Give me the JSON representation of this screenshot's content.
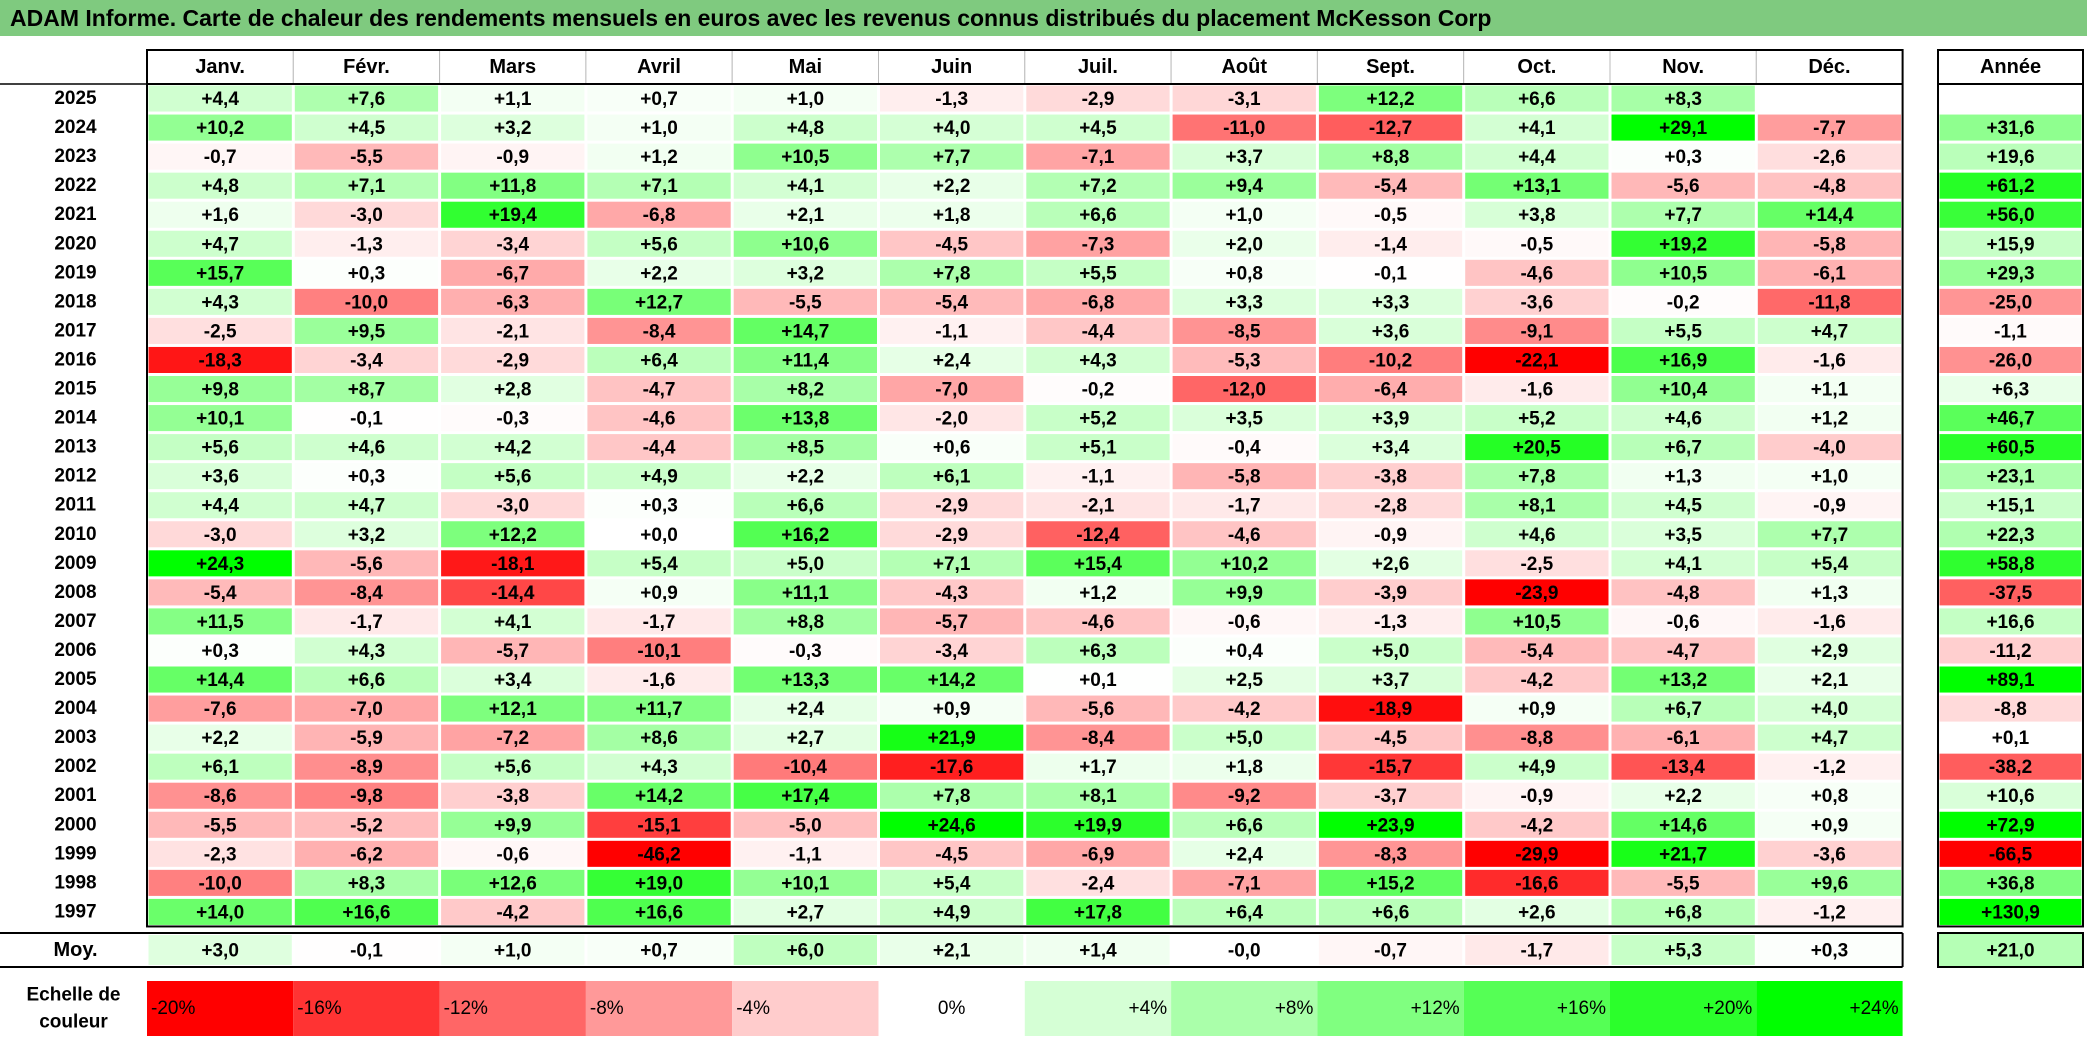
{
  "title": "ADAM Informe. Carte de chaleur des rendements mensuels en euros avec les revenus connus distribués du placement McKesson Corp",
  "chart_data": {
    "type": "heatmap",
    "months": [
      "Janv.",
      "Févr.",
      "Mars",
      "Avril",
      "Mai",
      "Juin",
      "Juil.",
      "Août",
      "Sept.",
      "Oct.",
      "Nov.",
      "Déc."
    ],
    "year_header": "Année",
    "rows": [
      {
        "year": "2025",
        "values": [
          "+4,4",
          "+7,6",
          "+1,1",
          "+0,7",
          "+1,0",
          "-1,3",
          "-2,9",
          "-3,1",
          "+12,2",
          "+6,6",
          "+8,3",
          ""
        ],
        "annual": ""
      },
      {
        "year": "2024",
        "values": [
          "+10,2",
          "+4,5",
          "+3,2",
          "+1,0",
          "+4,8",
          "+4,0",
          "+4,5",
          "-11,0",
          "-12,7",
          "+4,1",
          "+29,1",
          "-7,7"
        ],
        "annual": "+31,6"
      },
      {
        "year": "2023",
        "values": [
          "-0,7",
          "-5,5",
          "-0,9",
          "+1,2",
          "+10,5",
          "+7,7",
          "-7,1",
          "+3,7",
          "+8,8",
          "+4,4",
          "+0,3",
          "-2,6"
        ],
        "annual": "+19,6"
      },
      {
        "year": "2022",
        "values": [
          "+4,8",
          "+7,1",
          "+11,8",
          "+7,1",
          "+4,1",
          "+2,2",
          "+7,2",
          "+9,4",
          "-5,4",
          "+13,1",
          "-5,6",
          "-4,8"
        ],
        "annual": "+61,2"
      },
      {
        "year": "2021",
        "values": [
          "+1,6",
          "-3,0",
          "+19,4",
          "-6,8",
          "+2,1",
          "+1,8",
          "+6,6",
          "+1,0",
          "-0,5",
          "+3,8",
          "+7,7",
          "+14,4"
        ],
        "annual": "+56,0"
      },
      {
        "year": "2020",
        "values": [
          "+4,7",
          "-1,3",
          "-3,4",
          "+5,6",
          "+10,6",
          "-4,5",
          "-7,3",
          "+2,0",
          "-1,4",
          "-0,5",
          "+19,2",
          "-5,8"
        ],
        "annual": "+15,9"
      },
      {
        "year": "2019",
        "values": [
          "+15,7",
          "+0,3",
          "-6,7",
          "+2,2",
          "+3,2",
          "+7,8",
          "+5,5",
          "+0,8",
          "-0,1",
          "-4,6",
          "+10,5",
          "-6,1"
        ],
        "annual": "+29,3"
      },
      {
        "year": "2018",
        "values": [
          "+4,3",
          "-10,0",
          "-6,3",
          "+12,7",
          "-5,5",
          "-5,4",
          "-6,8",
          "+3,3",
          "+3,3",
          "-3,6",
          "-0,2",
          "-11,8"
        ],
        "annual": "-25,0"
      },
      {
        "year": "2017",
        "values": [
          "-2,5",
          "+9,5",
          "-2,1",
          "-8,4",
          "+14,7",
          "-1,1",
          "-4,4",
          "-8,5",
          "+3,6",
          "-9,1",
          "+5,5",
          "+4,7"
        ],
        "annual": "-1,1"
      },
      {
        "year": "2016",
        "values": [
          "-18,3",
          "-3,4",
          "-2,9",
          "+6,4",
          "+11,4",
          "+2,4",
          "+4,3",
          "-5,3",
          "-10,2",
          "-22,1",
          "+16,9",
          "-1,6"
        ],
        "annual": "-26,0"
      },
      {
        "year": "2015",
        "values": [
          "+9,8",
          "+8,7",
          "+2,8",
          "-4,7",
          "+8,2",
          "-7,0",
          "-0,2",
          "-12,0",
          "-6,4",
          "-1,6",
          "+10,4",
          "+1,1"
        ],
        "annual": "+6,3"
      },
      {
        "year": "2014",
        "values": [
          "+10,1",
          "-0,1",
          "-0,3",
          "-4,6",
          "+13,8",
          "-2,0",
          "+5,2",
          "+3,5",
          "+3,9",
          "+5,2",
          "+4,6",
          "+1,2"
        ],
        "annual": "+46,7"
      },
      {
        "year": "2013",
        "values": [
          "+5,6",
          "+4,6",
          "+4,2",
          "-4,4",
          "+8,5",
          "+0,6",
          "+5,1",
          "-0,4",
          "+3,4",
          "+20,5",
          "+6,7",
          "-4,0"
        ],
        "annual": "+60,5"
      },
      {
        "year": "2012",
        "values": [
          "+3,6",
          "+0,3",
          "+5,6",
          "+4,9",
          "+2,2",
          "+6,1",
          "-1,1",
          "-5,8",
          "-3,8",
          "+7,8",
          "+1,3",
          "+1,0"
        ],
        "annual": "+23,1"
      },
      {
        "year": "2011",
        "values": [
          "+4,4",
          "+4,7",
          "-3,0",
          "+0,3",
          "+6,6",
          "-2,9",
          "-2,1",
          "-1,7",
          "-2,8",
          "+8,1",
          "+4,5",
          "-0,9"
        ],
        "annual": "+15,1"
      },
      {
        "year": "2010",
        "values": [
          "-3,0",
          "+3,2",
          "+12,2",
          "+0,0",
          "+16,2",
          "-2,9",
          "-12,4",
          "-4,6",
          "-0,9",
          "+4,6",
          "+3,5",
          "+7,7"
        ],
        "annual": "+22,3"
      },
      {
        "year": "2009",
        "values": [
          "+24,3",
          "-5,6",
          "-18,1",
          "+5,4",
          "+5,0",
          "+7,1",
          "+15,4",
          "+10,2",
          "+2,6",
          "-2,5",
          "+4,1",
          "+5,4"
        ],
        "annual": "+58,8"
      },
      {
        "year": "2008",
        "values": [
          "-5,4",
          "-8,4",
          "-14,4",
          "+0,9",
          "+11,1",
          "-4,3",
          "+1,2",
          "+9,9",
          "-3,9",
          "-23,9",
          "-4,8",
          "+1,3"
        ],
        "annual": "-37,5"
      },
      {
        "year": "2007",
        "values": [
          "+11,5",
          "-1,7",
          "+4,1",
          "-1,7",
          "+8,8",
          "-5,7",
          "-4,6",
          "-0,6",
          "-1,3",
          "+10,5",
          "-0,6",
          "-1,6"
        ],
        "annual": "+16,6"
      },
      {
        "year": "2006",
        "values": [
          "+0,3",
          "+4,3",
          "-5,7",
          "-10,1",
          "-0,3",
          "-3,4",
          "+6,3",
          "+0,4",
          "+5,0",
          "-5,4",
          "-4,7",
          "+2,9"
        ],
        "annual": "-11,2"
      },
      {
        "year": "2005",
        "values": [
          "+14,4",
          "+6,6",
          "+3,4",
          "-1,6",
          "+13,3",
          "+14,2",
          "+0,1",
          "+2,5",
          "+3,7",
          "-4,2",
          "+13,2",
          "+2,1"
        ],
        "annual": "+89,1"
      },
      {
        "year": "2004",
        "values": [
          "-7,6",
          "-7,0",
          "+12,1",
          "+11,7",
          "+2,4",
          "+0,9",
          "-5,6",
          "-4,2",
          "-18,9",
          "+0,9",
          "+6,7",
          "+4,0"
        ],
        "annual": "-8,8"
      },
      {
        "year": "2003",
        "values": [
          "+2,2",
          "-5,9",
          "-7,2",
          "+8,6",
          "+2,7",
          "+21,9",
          "-8,4",
          "+5,0",
          "-4,5",
          "-8,8",
          "-6,1",
          "+4,7"
        ],
        "annual": "+0,1"
      },
      {
        "year": "2002",
        "values": [
          "+6,1",
          "-8,9",
          "+5,6",
          "+4,3",
          "-10,4",
          "-17,6",
          "+1,7",
          "+1,8",
          "-15,7",
          "+4,9",
          "-13,4",
          "-1,2"
        ],
        "annual": "-38,2"
      },
      {
        "year": "2001",
        "values": [
          "-8,6",
          "-9,8",
          "-3,8",
          "+14,2",
          "+17,4",
          "+7,8",
          "+8,1",
          "-9,2",
          "-3,7",
          "-0,9",
          "+2,2",
          "+0,8"
        ],
        "annual": "+10,6"
      },
      {
        "year": "2000",
        "values": [
          "-5,5",
          "-5,2",
          "+9,9",
          "-15,1",
          "-5,0",
          "+24,6",
          "+19,9",
          "+6,6",
          "+23,9",
          "-4,2",
          "+14,6",
          "+0,9"
        ],
        "annual": "+72,9"
      },
      {
        "year": "1999",
        "values": [
          "-2,3",
          "-6,2",
          "-0,6",
          "-46,2",
          "-1,1",
          "-4,5",
          "-6,9",
          "+2,4",
          "-8,3",
          "-29,9",
          "+21,7",
          "-3,6"
        ],
        "annual": "-66,5"
      },
      {
        "year": "1998",
        "values": [
          "-10,0",
          "+8,3",
          "+12,6",
          "+19,0",
          "+10,1",
          "+5,4",
          "-2,4",
          "-7,1",
          "+15,2",
          "-16,6",
          "-5,5",
          "+9,6"
        ],
        "annual": "+36,8"
      },
      {
        "year": "1997",
        "values": [
          "+14,0",
          "+16,6",
          "-4,2",
          "+16,6",
          "+2,7",
          "+4,9",
          "+17,8",
          "+6,4",
          "+6,6",
          "+2,6",
          "+6,8",
          "-1,2"
        ],
        "annual": "+130,9"
      }
    ],
    "average": {
      "label": "Moy.",
      "values": [
        "+3,0",
        "-0,1",
        "+1,0",
        "+0,7",
        "+6,0",
        "+2,1",
        "+1,4",
        "-0,0",
        "-0,7",
        "-1,7",
        "+5,3",
        "+0,3"
      ],
      "annual": "+21,0"
    },
    "scale": {
      "label_line1": "Echelle de",
      "label_line2": "couleur",
      "steps": [
        {
          "label": "-20%",
          "value": -20
        },
        {
          "label": "-16%",
          "value": -16
        },
        {
          "label": "-12%",
          "value": -12
        },
        {
          "label": "-8%",
          "value": -8
        },
        {
          "label": "-4%",
          "value": -4
        },
        {
          "label": "0%",
          "value": 0
        },
        {
          "label": "+4%",
          "value": 4
        },
        {
          "label": "+8%",
          "value": 8
        },
        {
          "label": "+12%",
          "value": 12
        },
        {
          "label": "+16%",
          "value": 16
        },
        {
          "label": "+20%",
          "value": 20
        },
        {
          "label": "+24%",
          "value": 24
        }
      ]
    },
    "colors": {
      "negative_max": "#ff0000",
      "neutral": "#ffffff",
      "positive_max": "#00ff00",
      "title_background": "#7fca7f"
    }
  }
}
